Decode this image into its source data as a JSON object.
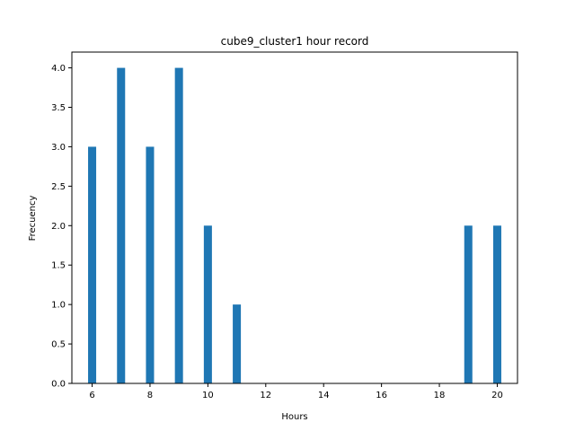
{
  "chart_data": {
    "type": "bar",
    "title": "cube9_cluster1 hour record",
    "xlabel": "Hours",
    "ylabel": "Frecuency",
    "x": [
      6,
      7,
      8,
      9,
      10,
      11,
      19,
      20
    ],
    "values": [
      3,
      4,
      3,
      4,
      2,
      1,
      2,
      2
    ],
    "xlim": [
      5.3,
      20.7
    ],
    "ylim": [
      0,
      4.2
    ],
    "xticks": [
      6,
      8,
      10,
      12,
      14,
      16,
      18,
      20
    ],
    "yticks": [
      "0.0",
      "0.5",
      "1.0",
      "1.5",
      "2.0",
      "2.5",
      "3.0",
      "3.5",
      "4.0"
    ],
    "bar_color": "#1f77b4",
    "grid": false,
    "legend": "none"
  }
}
